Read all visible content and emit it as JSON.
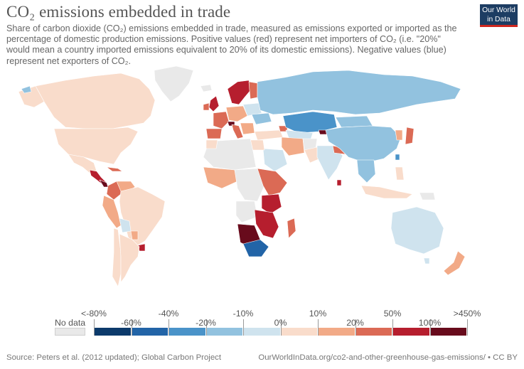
{
  "header": {
    "title": "CO₂ emissions embedded in trade",
    "subtitle": "Share of carbon dioxide (CO₂) emissions embedded in trade, measured as emissions exported or imported as the percentage of domestic production emissions. Positive values (red) represent net importers of CO₂ (i.e. \"20%\" would mean a country imported emissions equivalent to 20% of its domestic emissions). Negative values (blue) represent net exporters of CO₂."
  },
  "logo": {
    "line1": "Our World",
    "line2": "in Data",
    "background": "#1d3d63",
    "accent": "#ce261e"
  },
  "legend": {
    "no_data_label": "No data",
    "no_data_color": "#e9e9e9",
    "top_labels": [
      "<-80%",
      "-40%",
      "-10%",
      "10%",
      "50%",
      ">450%"
    ],
    "bottom_labels": [
      "-60%",
      "-20%",
      "0%",
      "20%",
      "100%"
    ],
    "bins": [
      {
        "range": "<-80% to -60%",
        "color": "#0c3a6b"
      },
      {
        "range": "-60% to -40%",
        "color": "#2264a7"
      },
      {
        "range": "-40% to -20%",
        "color": "#4a93c9"
      },
      {
        "range": "-20% to -10%",
        "color": "#92c2df"
      },
      {
        "range": "-10% to 0%",
        "color": "#cfe3ee"
      },
      {
        "range": "0% to 10%",
        "color": "#f9dccb"
      },
      {
        "range": "10% to 20%",
        "color": "#f2aa87"
      },
      {
        "range": "20% to 50%",
        "color": "#db6a55"
      },
      {
        "range": "50% to 100%",
        "color": "#b61e2e"
      },
      {
        "range": "100% to >450%",
        "color": "#680b1c"
      }
    ]
  },
  "map_colors": {
    "land_nodata": "#e9e9e9",
    "ocean": "#ffffff",
    "border": "#ffffff"
  },
  "footer": {
    "source": "Source: Peters et al. (2012 updated); Global Carbon Project",
    "url": "OurWorldInData.org/co2-and-other-greenhouse-gas-emissions/ • CC BY"
  }
}
